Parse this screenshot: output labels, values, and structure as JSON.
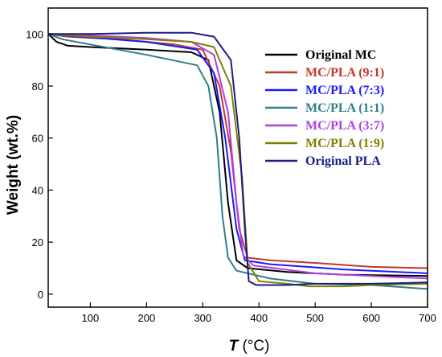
{
  "chart_data": {
    "type": "line",
    "ylabel": "Weight (wt.%)",
    "xlabel_italic": "T",
    "xlabel_unit": "(°C)",
    "xlim": [
      25,
      700
    ],
    "ylim": [
      -5,
      110
    ],
    "x_ticks": [
      100,
      200,
      300,
      400,
      500,
      600,
      700
    ],
    "y_ticks": [
      0,
      20,
      40,
      60,
      80,
      100
    ],
    "legend_position": "upper-right",
    "series": [
      {
        "name": "Original MC",
        "color": "#000000",
        "points": [
          [
            25,
            100
          ],
          [
            40,
            97
          ],
          [
            60,
            95.5
          ],
          [
            100,
            95
          ],
          [
            200,
            94
          ],
          [
            280,
            93
          ],
          [
            310,
            90
          ],
          [
            330,
            70
          ],
          [
            345,
            35
          ],
          [
            360,
            13
          ],
          [
            380,
            10
          ],
          [
            450,
            8.5
          ],
          [
            550,
            7.5
          ],
          [
            700,
            7
          ]
        ]
      },
      {
        "name": "MC/PLA (9:1)",
        "color": "#c0392b",
        "points": [
          [
            25,
            100
          ],
          [
            60,
            99
          ],
          [
            150,
            98
          ],
          [
            250,
            96
          ],
          [
            300,
            94
          ],
          [
            330,
            80
          ],
          [
            350,
            55
          ],
          [
            365,
            25
          ],
          [
            380,
            14
          ],
          [
            420,
            13
          ],
          [
            500,
            12
          ],
          [
            600,
            10.5
          ],
          [
            700,
            10
          ]
        ]
      },
      {
        "name": "MC/PLA (7:3)",
        "color": "#1a1aff",
        "points": [
          [
            25,
            100
          ],
          [
            80,
            99
          ],
          [
            200,
            97
          ],
          [
            290,
            94
          ],
          [
            320,
            85
          ],
          [
            340,
            60
          ],
          [
            360,
            25
          ],
          [
            375,
            13
          ],
          [
            420,
            11.5
          ],
          [
            550,
            9.5
          ],
          [
            700,
            8
          ]
        ]
      },
      {
        "name": "MC/PLA (1:1)",
        "color": "#2e7d8c",
        "points": [
          [
            25,
            100
          ],
          [
            50,
            98
          ],
          [
            100,
            96
          ],
          [
            200,
            92
          ],
          [
            290,
            88
          ],
          [
            310,
            80
          ],
          [
            325,
            60
          ],
          [
            335,
            30
          ],
          [
            345,
            14
          ],
          [
            360,
            9
          ],
          [
            420,
            6
          ],
          [
            500,
            4
          ],
          [
            600,
            3.5
          ],
          [
            700,
            2
          ]
        ]
      },
      {
        "name": "MC/PLA (3:7)",
        "color": "#b040e0",
        "points": [
          [
            25,
            100
          ],
          [
            100,
            99.5
          ],
          [
            200,
            98.5
          ],
          [
            280,
            97
          ],
          [
            320,
            92
          ],
          [
            345,
            70
          ],
          [
            360,
            35
          ],
          [
            372,
            15
          ],
          [
            390,
            11
          ],
          [
            500,
            8
          ],
          [
            600,
            7
          ],
          [
            700,
            6
          ]
        ]
      },
      {
        "name": "MC/PLA (1:9)",
        "color": "#808000",
        "points": [
          [
            25,
            100
          ],
          [
            100,
            99
          ],
          [
            200,
            98
          ],
          [
            280,
            97
          ],
          [
            320,
            95
          ],
          [
            350,
            80
          ],
          [
            370,
            45
          ],
          [
            380,
            12
          ],
          [
            400,
            5
          ],
          [
            450,
            4
          ],
          [
            490,
            3
          ],
          [
            550,
            3
          ],
          [
            600,
            3.5
          ],
          [
            700,
            4
          ]
        ]
      },
      {
        "name": "Original PLA",
        "color": "#1c1c80",
        "points": [
          [
            25,
            100
          ],
          [
            100,
            100
          ],
          [
            200,
            100.5
          ],
          [
            280,
            100.5
          ],
          [
            320,
            99
          ],
          [
            350,
            90
          ],
          [
            365,
            60
          ],
          [
            375,
            25
          ],
          [
            382,
            5
          ],
          [
            395,
            3.5
          ],
          [
            450,
            3.5
          ],
          [
            500,
            4
          ],
          [
            600,
            4
          ],
          [
            700,
            4.5
          ]
        ]
      }
    ]
  }
}
